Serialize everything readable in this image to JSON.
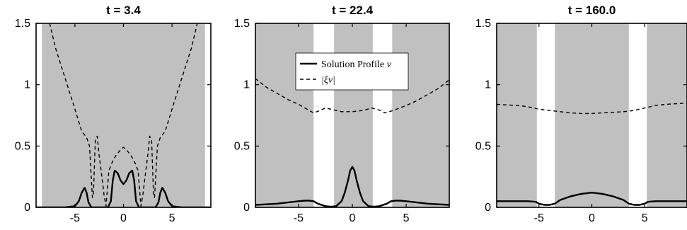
{
  "chart_data": [
    {
      "type": "line",
      "title": "t = 3.4",
      "xlim": [
        -9,
        9
      ],
      "ylim": [
        0,
        1.5
      ],
      "xticks": [
        -5,
        0,
        5
      ],
      "xtick_labels": [
        "-5",
        "0",
        "5"
      ],
      "yticks": [
        0,
        0.5,
        1,
        1.5
      ],
      "ytick_labels": [
        "0",
        "0.5",
        "1",
        "1.5"
      ],
      "shaded_x_intervals": [
        [
          -8.4,
          8.4
        ]
      ],
      "shade_color": "#c0c0c0",
      "series": [
        {
          "style": "solid",
          "x": [
            -9,
            -6,
            -5,
            -4.6,
            -4.3,
            -4.0,
            -3.8,
            -3.6,
            -3.3,
            -2.5,
            -1.6,
            -1.3,
            -1.1,
            -0.9,
            -0.6,
            -0.3,
            0,
            0.3,
            0.6,
            0.9,
            1.1,
            1.3,
            1.6,
            2.5,
            3.3,
            3.6,
            3.8,
            4.0,
            4.3,
            4.6,
            5,
            6,
            9
          ],
          "y": [
            0.0,
            0.0,
            0.01,
            0.05,
            0.12,
            0.16,
            0.12,
            0.04,
            0.0,
            0.0,
            0.0,
            0.05,
            0.22,
            0.3,
            0.28,
            0.22,
            0.19,
            0.22,
            0.28,
            0.3,
            0.22,
            0.05,
            0.0,
            0.0,
            0.0,
            0.04,
            0.12,
            0.16,
            0.12,
            0.05,
            0.01,
            0.0,
            0.0
          ]
        },
        {
          "style": "dashed",
          "x": [
            -8.0,
            -7.6,
            -7.0,
            -6.0,
            -5.0,
            -4.3,
            -3.8,
            -3.5,
            -3.2,
            -3.1,
            -2.9,
            -2.7,
            -2.5,
            -2.3,
            -2.0,
            -1.8,
            -1.5,
            -1.2,
            -0.8,
            -0.3,
            0,
            0.3,
            0.8,
            1.2,
            1.5,
            1.8,
            2.0,
            2.3,
            2.5,
            2.7,
            2.9,
            3.1,
            3.2,
            3.5,
            3.8,
            4.3,
            5.0,
            6.0,
            7.0,
            7.6,
            8.0
          ],
          "y": [
            1.6,
            1.5,
            1.3,
            1.05,
            0.8,
            0.62,
            0.57,
            0.5,
            0.08,
            0.1,
            0.55,
            0.58,
            0.42,
            0.3,
            0.1,
            0.01,
            0.3,
            0.36,
            0.42,
            0.47,
            0.49,
            0.47,
            0.42,
            0.36,
            0.3,
            0.01,
            0.1,
            0.3,
            0.42,
            0.58,
            0.55,
            0.1,
            0.08,
            0.5,
            0.57,
            0.62,
            0.8,
            1.05,
            1.3,
            1.5,
            1.6
          ]
        }
      ]
    },
    {
      "type": "line",
      "title": "t = 22.4",
      "xlim": [
        -9,
        9
      ],
      "ylim": [
        0,
        1.5
      ],
      "xticks": [
        -5,
        0,
        5
      ],
      "xtick_labels": [
        "-5",
        "0",
        "5"
      ],
      "yticks": [
        0,
        0.5,
        1,
        1.5
      ],
      "ytick_labels": [
        "0",
        "0.5",
        "1",
        "1.5"
      ],
      "shaded_x_intervals": [
        [
          -9,
          -3.6
        ],
        [
          -1.7,
          1.9
        ],
        [
          3.7,
          9
        ]
      ],
      "shade_color": "#c0c0c0",
      "legend": {
        "position": "top-center",
        "entries": [
          {
            "label": "Solution Profile",
            "math": "v",
            "style": "solid"
          },
          {
            "label": "",
            "math": "|ξ_v|",
            "style": "dashed"
          }
        ]
      },
      "series": [
        {
          "name": "Solution Profile v",
          "style": "solid",
          "x": [
            -9,
            -8,
            -7,
            -6,
            -5,
            -4.4,
            -4,
            -3.6,
            -3.2,
            -2.5,
            -2,
            -1.5,
            -1.0,
            -0.7,
            -0.4,
            -0.2,
            0,
            0.2,
            0.4,
            0.7,
            1.0,
            1.5,
            2,
            2.5,
            3.2,
            3.6,
            4,
            4.4,
            5,
            6,
            7,
            8,
            9
          ],
          "y": [
            0.02,
            0.025,
            0.03,
            0.04,
            0.05,
            0.055,
            0.055,
            0.05,
            0.03,
            0.01,
            0.005,
            0.01,
            0.05,
            0.12,
            0.22,
            0.3,
            0.33,
            0.3,
            0.22,
            0.12,
            0.05,
            0.01,
            0.005,
            0.01,
            0.03,
            0.05,
            0.055,
            0.055,
            0.05,
            0.04,
            0.03,
            0.025,
            0.02
          ]
        },
        {
          "name": "|ξ_v|",
          "style": "dashed",
          "x": [
            -9,
            -8,
            -7,
            -6,
            -5,
            -4,
            -3.6,
            -3,
            -2.5,
            -2,
            -1,
            0,
            1,
            1.8,
            2.2,
            2.6,
            3,
            3.8,
            5,
            6,
            7,
            8,
            9
          ],
          "y": [
            1.05,
            0.98,
            0.93,
            0.88,
            0.84,
            0.79,
            0.77,
            0.79,
            0.81,
            0.8,
            0.78,
            0.78,
            0.79,
            0.81,
            0.8,
            0.79,
            0.77,
            0.79,
            0.83,
            0.87,
            0.92,
            0.97,
            1.04
          ]
        }
      ]
    },
    {
      "type": "line",
      "title": "t = 160.0",
      "xlim": [
        -9,
        9
      ],
      "ylim": [
        0,
        1.5
      ],
      "xticks": [
        -5,
        0,
        5
      ],
      "xtick_labels": [
        "-5",
        "0",
        "5"
      ],
      "yticks": [
        0,
        0.5,
        1,
        1.5
      ],
      "ytick_labels": [
        "0",
        "0.5",
        "1",
        "1.5"
      ],
      "shaded_x_intervals": [
        [
          -9,
          -5.2
        ],
        [
          -3.5,
          3.5
        ],
        [
          5.2,
          9
        ]
      ],
      "shade_color": "#c0c0c0",
      "series": [
        {
          "style": "solid",
          "x": [
            -9,
            -7,
            -6,
            -5.3,
            -5,
            -4.5,
            -4,
            -3.5,
            -3,
            -2,
            -1,
            0,
            1,
            2,
            3,
            3.5,
            4,
            4.5,
            5,
            5.3,
            6,
            7,
            9
          ],
          "y": [
            0.05,
            0.05,
            0.05,
            0.045,
            0.03,
            0.02,
            0.02,
            0.03,
            0.06,
            0.09,
            0.11,
            0.12,
            0.11,
            0.09,
            0.06,
            0.03,
            0.02,
            0.02,
            0.03,
            0.045,
            0.05,
            0.05,
            0.05
          ]
        },
        {
          "style": "dashed",
          "x": [
            -9,
            -7,
            -6,
            -5,
            -4,
            -3,
            -2,
            -1,
            0,
            1,
            2,
            3,
            4,
            5,
            6,
            7,
            9
          ],
          "y": [
            0.84,
            0.83,
            0.82,
            0.8,
            0.79,
            0.78,
            0.77,
            0.765,
            0.765,
            0.77,
            0.775,
            0.78,
            0.79,
            0.81,
            0.83,
            0.84,
            0.85
          ]
        }
      ]
    }
  ]
}
